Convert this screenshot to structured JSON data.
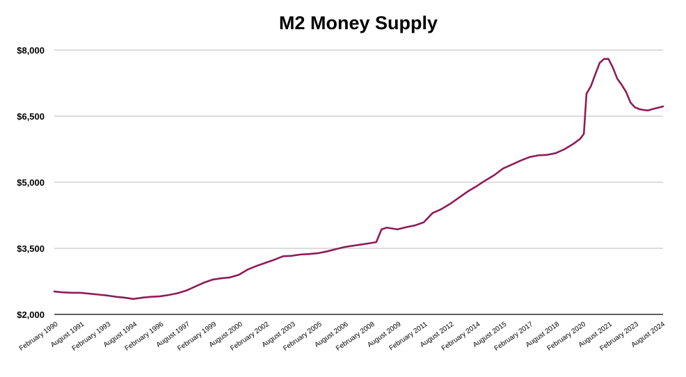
{
  "chart_data": {
    "type": "line",
    "title": "M2 Money Supply",
    "xlabel": "",
    "ylabel": "",
    "ylim": [
      2000,
      8000
    ],
    "grid": true,
    "legend": "none",
    "y_ticks": [
      {
        "value": 2000,
        "label": "$2,000"
      },
      {
        "value": 3500,
        "label": "$3,500"
      },
      {
        "value": 5000,
        "label": "$5,000"
      },
      {
        "value": 6500,
        "label": "$6,500"
      },
      {
        "value": 8000,
        "label": "$8,000"
      }
    ],
    "x_ticks": [
      {
        "value": 1990.08,
        "label": "February 1990"
      },
      {
        "value": 1991.58,
        "label": "August 1991"
      },
      {
        "value": 1993.08,
        "label": "February 1993"
      },
      {
        "value": 1994.58,
        "label": "August 1994"
      },
      {
        "value": 1996.08,
        "label": "February 1996"
      },
      {
        "value": 1997.58,
        "label": "August 1997"
      },
      {
        "value": 1999.08,
        "label": "February 1999"
      },
      {
        "value": 2000.58,
        "label": "August 2000"
      },
      {
        "value": 2002.08,
        "label": "February 2002"
      },
      {
        "value": 2003.58,
        "label": "August 2003"
      },
      {
        "value": 2005.08,
        "label": "February 2005"
      },
      {
        "value": 2006.58,
        "label": "August 2006"
      },
      {
        "value": 2008.08,
        "label": "February 2008"
      },
      {
        "value": 2009.58,
        "label": "August 2009"
      },
      {
        "value": 2011.08,
        "label": "February 2011"
      },
      {
        "value": 2012.58,
        "label": "August 2012"
      },
      {
        "value": 2014.08,
        "label": "February 2014"
      },
      {
        "value": 2015.58,
        "label": "August 2015"
      },
      {
        "value": 2017.08,
        "label": "February 2017"
      },
      {
        "value": 2018.58,
        "label": "August 2018"
      },
      {
        "value": 2020.08,
        "label": "February 2020"
      },
      {
        "value": 2021.58,
        "label": "August 2021"
      },
      {
        "value": 2023.08,
        "label": "February 2023"
      },
      {
        "value": 2024.58,
        "label": "August 2024"
      }
    ],
    "colors": {
      "line": "#8e1b57",
      "grid": "#b8b8b8"
    },
    "series": [
      {
        "x": [
          1990.0,
          1990.5,
          1991.0,
          1991.5,
          1992.0,
          1992.5,
          1993.0,
          1993.5,
          1994.0,
          1994.5,
          1995.0,
          1995.5,
          1996.0,
          1996.5,
          1997.0,
          1997.5,
          1998.0,
          1998.5,
          1999.0,
          1999.5,
          2000.0,
          2000.5,
          2001.0,
          2001.5,
          2002.0,
          2002.5,
          2003.0,
          2003.5,
          2004.0,
          2004.5,
          2005.0,
          2005.5,
          2006.0,
          2006.5,
          2007.0,
          2007.5,
          2008.0,
          2008.3,
          2008.6,
          2008.9,
          2009.2,
          2009.5,
          2010.0,
          2010.5,
          2011.0,
          2011.5,
          2012.0,
          2012.5,
          2013.0,
          2013.5,
          2014.0,
          2014.5,
          2015.0,
          2015.5,
          2016.0,
          2016.5,
          2017.0,
          2017.5,
          2018.0,
          2018.5,
          2019.0,
          2019.5,
          2019.9,
          2020.1,
          2020.25,
          2020.5,
          2020.75,
          2021.0,
          2021.25,
          2021.5,
          2021.75,
          2022.0,
          2022.25,
          2022.5,
          2022.75,
          2023.0,
          2023.25,
          2023.5,
          2023.75,
          2024.0,
          2024.3,
          2024.6
        ],
        "values": [
          2520,
          2500,
          2490,
          2490,
          2470,
          2450,
          2430,
          2400,
          2380,
          2350,
          2380,
          2400,
          2410,
          2440,
          2480,
          2540,
          2630,
          2720,
          2790,
          2820,
          2840,
          2900,
          3020,
          3100,
          3170,
          3240,
          3320,
          3330,
          3360,
          3370,
          3390,
          3430,
          3480,
          3530,
          3560,
          3590,
          3620,
          3640,
          3930,
          3970,
          3950,
          3930,
          3980,
          4020,
          4090,
          4300,
          4390,
          4510,
          4650,
          4790,
          4910,
          5040,
          5160,
          5310,
          5400,
          5490,
          5570,
          5610,
          5620,
          5660,
          5750,
          5870,
          5990,
          6100,
          7010,
          7180,
          7450,
          7710,
          7800,
          7800,
          7600,
          7350,
          7210,
          7050,
          6810,
          6700,
          6660,
          6640,
          6630,
          6660,
          6690,
          6720
        ]
      }
    ]
  }
}
